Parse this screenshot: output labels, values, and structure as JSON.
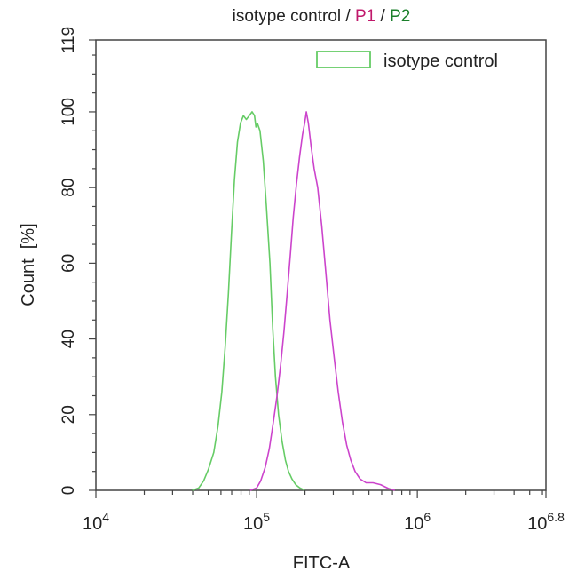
{
  "chart_data": {
    "type": "line",
    "title_parts": [
      {
        "text": "isotype control",
        "color": "#222222"
      },
      {
        "text": " / ",
        "color": "#222222"
      },
      {
        "text": "P1",
        "color": "#c0186b"
      },
      {
        "text": " / ",
        "color": "#222222"
      },
      {
        "text": "P2",
        "color": "#1a7f2a"
      }
    ],
    "xlabel": "FITC-A",
    "ylabel": "Count  [%]",
    "x_scale": "log10",
    "xlim": [
      10000,
      6309573
    ],
    "ylim": [
      0,
      119
    ],
    "x_ticks": [
      {
        "value": 10000,
        "base": "10",
        "exp": "4"
      },
      {
        "value": 100000,
        "base": "10",
        "exp": "5"
      },
      {
        "value": 1000000,
        "base": "10",
        "exp": "6"
      },
      {
        "value": 6309573,
        "base": "10",
        "exp": "6.8"
      }
    ],
    "y_ticks": [
      0,
      20,
      40,
      60,
      80,
      100,
      119
    ],
    "legend": {
      "placement": "top-right",
      "entries": [
        {
          "label": "isotype control",
          "color": "#66cc66"
        }
      ]
    },
    "series": [
      {
        "name": "isotype control",
        "color": "#66cc66",
        "x": [
          39800,
          43600,
          46800,
          50100,
          54100,
          57500,
          60800,
          63800,
          66800,
          69800,
          72800,
          76000,
          79400,
          82800,
          86300,
          90000,
          93800,
          97000,
          99000,
          101000,
          105000,
          110000,
          115000,
          121000,
          126000,
          131000,
          137000,
          144000,
          151000,
          158000,
          166000,
          175000,
          186000,
          199000
        ],
        "y": [
          0,
          0.6,
          2.5,
          5.5,
          10,
          17,
          26,
          38,
          52,
          68,
          82,
          92,
          97,
          99,
          98,
          99,
          100,
          99,
          96,
          97,
          95,
          87,
          75,
          60,
          43,
          30,
          20,
          13,
          8,
          5,
          3,
          1.5,
          0.6,
          0
        ]
      },
      {
        "name": "",
        "color": "#cc44cc",
        "x": [
          91200,
          100000,
          106000,
          113000,
          120000,
          127000,
          134000,
          141000,
          148000,
          155000,
          162000,
          169000,
          177000,
          185000,
          193000,
          199000,
          204000,
          210000,
          218000,
          228000,
          240000,
          254000,
          269000,
          286000,
          304000,
          322000,
          342000,
          363000,
          385000,
          410000,
          440000,
          480000,
          530000,
          590000,
          660000,
          724000
        ],
        "y": [
          0,
          0.6,
          2.5,
          6,
          11,
          18,
          25,
          33,
          42,
          52,
          62,
          72,
          81,
          88,
          94,
          97,
          100,
          97,
          91,
          85,
          80,
          70,
          58,
          45,
          35,
          26,
          18,
          12,
          8,
          5,
          3,
          2,
          2,
          1.5,
          0.5,
          0
        ]
      }
    ]
  }
}
